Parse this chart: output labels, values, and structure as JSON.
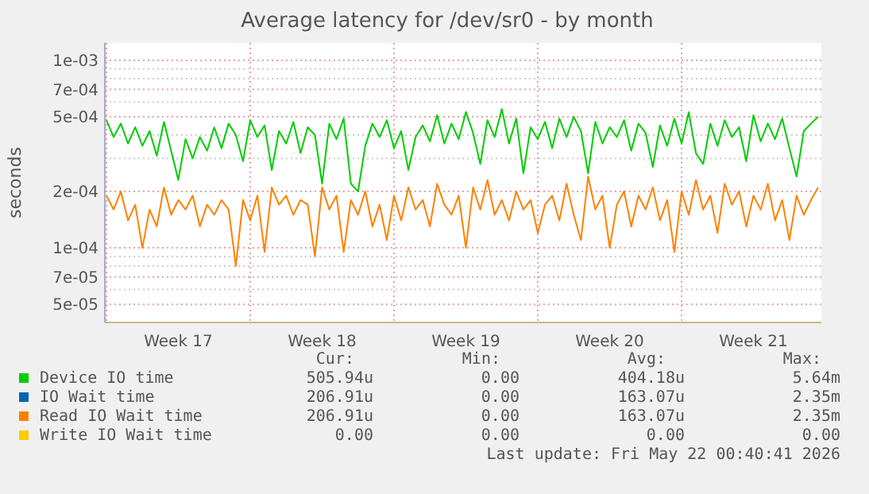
{
  "chart_data": {
    "type": "line",
    "title": "Average latency for /dev/sr0 - by month",
    "ylabel": "seconds",
    "categories": [
      null,
      null,
      null,
      null,
      null,
      null,
      null,
      null,
      null,
      null,
      "Week 17",
      null,
      null,
      null,
      null,
      null,
      null,
      null,
      null,
      null,
      null,
      null,
      null,
      null,
      null,
      null,
      null,
      null,
      null,
      null,
      "Week 18",
      null,
      null,
      null,
      null,
      null,
      null,
      null,
      null,
      null,
      null,
      null,
      null,
      null,
      null,
      null,
      null,
      null,
      null,
      null,
      "Week 19",
      null,
      null,
      null,
      null,
      null,
      null,
      null,
      null,
      null,
      null,
      null,
      null,
      null,
      null,
      null,
      null,
      null,
      null,
      null,
      "Week 20",
      null,
      null,
      null,
      null,
      null,
      null,
      null,
      null,
      null,
      null,
      null,
      null,
      null,
      null,
      null,
      null,
      null,
      null,
      null,
      "Week 21",
      null,
      null,
      null,
      null,
      null,
      null,
      null,
      null,
      null
    ],
    "log": "y",
    "ylim": [
      4e-05,
      0.00124
    ],
    "yticks": [
      {
        "value": 5e-05,
        "label": "5e-05"
      },
      {
        "value": 6e-05,
        "label": null
      },
      {
        "value": 7e-05,
        "label": "7e-05"
      },
      {
        "value": 8e-05,
        "label": null
      },
      {
        "value": 9e-05,
        "label": null
      },
      {
        "value": 0.0001,
        "label": "1e-04"
      },
      {
        "value": 0.0002,
        "label": "2e-04"
      },
      {
        "value": 0.0003,
        "label": null
      },
      {
        "value": 0.0004,
        "label": null
      },
      {
        "value": 0.0005,
        "label": "5e-04"
      },
      {
        "value": 0.0006,
        "label": null
      },
      {
        "value": 0.0007,
        "label": "7e-04"
      },
      {
        "value": 0.0008,
        "label": null
      },
      {
        "value": 0.0009,
        "label": null
      },
      {
        "value": 0.001,
        "label": "1e-03"
      }
    ],
    "grid": true,
    "legend": "bottom",
    "series": [
      {
        "name": "Device IO time",
        "color": "#00cc00",
        "values": [
          0.00048,
          0.00039,
          0.00046,
          0.00036,
          0.00044,
          0.00035,
          0.00042,
          0.00031,
          0.00047,
          0.00033,
          0.00023,
          0.00038,
          0.0003,
          0.00039,
          0.00033,
          0.00044,
          0.00034,
          0.00046,
          0.0004,
          0.00029,
          0.00048,
          0.00039,
          0.00045,
          0.00026,
          0.00042,
          0.00036,
          0.00047,
          0.00032,
          0.00044,
          0.0004,
          0.00022,
          0.00046,
          0.00038,
          0.00049,
          0.00022,
          0.0002,
          0.00035,
          0.00046,
          0.00039,
          0.00048,
          0.00034,
          0.00042,
          0.00026,
          0.00039,
          0.00045,
          0.00037,
          0.00051,
          0.00036,
          0.00046,
          0.00038,
          0.00053,
          0.00041,
          0.00028,
          0.00048,
          0.00039,
          0.00055,
          0.00036,
          0.00049,
          0.00025,
          0.00044,
          0.00038,
          0.00047,
          0.00034,
          0.00049,
          0.00039,
          0.0005,
          0.00042,
          0.00025,
          0.00047,
          0.00036,
          0.00044,
          0.00039,
          0.00048,
          0.00033,
          0.00046,
          0.00041,
          0.00027,
          0.00045,
          0.00035,
          0.00049,
          0.00036,
          0.00053,
          0.00032,
          0.00028,
          0.00046,
          0.00035,
          0.00048,
          0.00039,
          0.00044,
          0.00029,
          0.00051,
          0.00037,
          0.00046,
          0.00038,
          0.00049,
          0.00034,
          0.00024,
          0.00042,
          0.00046,
          0.0005
        ]
      },
      {
        "name": "IO Wait time",
        "color": "#0066b3",
        "values": [
          null,
          null,
          null,
          null,
          null,
          null,
          null,
          null,
          null,
          null,
          null,
          null,
          null,
          null,
          null,
          null,
          null,
          null,
          null,
          null,
          null,
          null,
          null,
          null,
          null,
          null,
          null,
          null,
          null,
          null,
          null,
          null,
          null,
          null,
          null,
          null,
          null,
          null,
          null,
          null,
          null,
          null,
          null,
          null,
          null,
          null,
          null,
          null,
          null,
          null,
          null,
          null,
          null,
          null,
          null,
          null,
          null,
          null,
          null,
          null,
          null,
          null,
          null,
          null,
          null,
          null,
          null,
          null,
          null,
          null,
          null,
          null,
          null,
          null,
          null,
          null,
          null,
          null,
          null,
          null,
          null,
          null,
          null,
          null,
          null,
          null,
          null,
          null,
          null,
          null,
          null,
          null,
          null,
          null,
          null,
          null,
          null,
          null,
          null,
          null
        ]
      },
      {
        "name": "Read IO Wait time",
        "color": "#ff8000",
        "values": [
          0.00019,
          0.00016,
          0.0002,
          0.00014,
          0.00017,
          0.0001,
          0.00016,
          0.00013,
          0.00021,
          0.00015,
          0.00018,
          0.00016,
          0.00019,
          0.00013,
          0.00017,
          0.00015,
          0.00018,
          0.00016,
          8e-05,
          0.00018,
          0.00014,
          0.00019,
          9.5e-05,
          0.00021,
          0.00017,
          0.00019,
          0.00015,
          0.00018,
          0.00017,
          9e-05,
          0.00021,
          0.00016,
          0.00019,
          9.5e-05,
          0.00018,
          0.00015,
          0.0002,
          0.00013,
          0.00017,
          0.00011,
          0.00019,
          0.00014,
          0.00021,
          0.00016,
          0.00018,
          0.00013,
          0.00022,
          0.00017,
          0.00015,
          0.00019,
          0.0001,
          0.00021,
          0.00016,
          0.00023,
          0.00015,
          0.00018,
          0.00014,
          0.0002,
          0.00016,
          0.00018,
          0.00012,
          0.00017,
          0.00019,
          0.00014,
          0.00022,
          0.00015,
          0.00011,
          0.00024,
          0.00016,
          0.00019,
          0.0001,
          0.00017,
          0.0002,
          0.00013,
          0.00019,
          0.00016,
          0.00021,
          0.00014,
          0.00018,
          9.5e-05,
          0.0002,
          0.00015,
          0.00023,
          0.00016,
          0.00019,
          0.00012,
          0.00022,
          0.00017,
          0.0002,
          0.00013,
          0.00019,
          0.00016,
          0.00022,
          0.00014,
          0.00018,
          0.00011,
          0.00019,
          0.00015,
          0.00018,
          0.00021
        ]
      },
      {
        "name": "Write IO Wait time",
        "color": "#ffcc00",
        "values": [
          null,
          null,
          null,
          null,
          null,
          null,
          null,
          null,
          null,
          null,
          null,
          null,
          null,
          null,
          null,
          null,
          null,
          null,
          null,
          null,
          null,
          null,
          null,
          null,
          null,
          null,
          null,
          null,
          null,
          null,
          null,
          null,
          null,
          null,
          null,
          null,
          null,
          null,
          null,
          null,
          null,
          null,
          null,
          null,
          null,
          null,
          null,
          null,
          null,
          null,
          null,
          null,
          null,
          null,
          null,
          null,
          null,
          null,
          null,
          null,
          null,
          null,
          null,
          null,
          null,
          null,
          null,
          null,
          null,
          null,
          null,
          null,
          null,
          null,
          null,
          null,
          null,
          null,
          null,
          null,
          null,
          null,
          null,
          null,
          null,
          null,
          null,
          null,
          null,
          null,
          null,
          null,
          null,
          null,
          null,
          null,
          null,
          null,
          null,
          null
        ]
      }
    ],
    "annotations": [
      "Cur:",
      "Min:",
      "Avg:",
      "Max:",
      "505.94u",
      "0.00",
      "404.18u",
      "5.64m",
      "206.91u",
      "0.00",
      "163.07u",
      "2.35m",
      "206.91u",
      "0.00",
      "163.07u",
      "2.35m",
      "0.00",
      "0.00",
      "0.00",
      "0.00",
      "Last update: Fri May 22 00:40:41 2026"
    ]
  }
}
